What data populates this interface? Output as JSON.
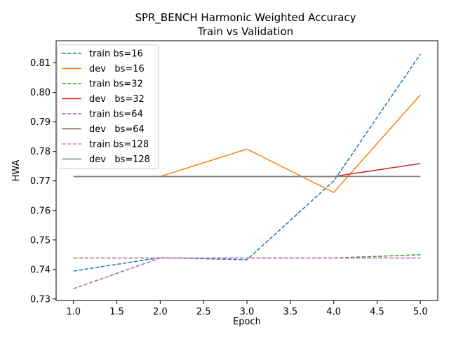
{
  "chart_data": {
    "type": "line",
    "title_lines": [
      "SPR_BENCH Harmonic Weighted Accuracy",
      "Train vs Validation"
    ],
    "xlabel": "Epoch",
    "ylabel": "HWA",
    "xlim": [
      0.8,
      5.2
    ],
    "ylim": [
      0.7295,
      0.8175
    ],
    "x_ticks": [
      1.0,
      1.5,
      2.0,
      2.5,
      3.0,
      3.5,
      4.0,
      4.5,
      5.0
    ],
    "x_tick_labels": [
      "1.0",
      "1.5",
      "2.0",
      "2.5",
      "3.0",
      "3.5",
      "4.0",
      "4.5",
      "5.0"
    ],
    "y_ticks": [
      0.73,
      0.74,
      0.75,
      0.76,
      0.77,
      0.78,
      0.79,
      0.8,
      0.81
    ],
    "y_tick_labels": [
      "0.73",
      "0.74",
      "0.75",
      "0.76",
      "0.77",
      "0.78",
      "0.79",
      "0.80",
      "0.81"
    ],
    "x": [
      1,
      2,
      3,
      4,
      5
    ],
    "legend_position": "upper-left",
    "series": [
      {
        "name": "train bs=16",
        "color": "#1f77b4",
        "dash": true,
        "values": [
          0.7395,
          0.744,
          0.7433,
          0.77,
          0.813
        ]
      },
      {
        "name": "dev   bs=16",
        "color": "#ff7f0e",
        "dash": false,
        "values": [
          0.7715,
          0.7715,
          0.7808,
          0.7661,
          0.7992
        ]
      },
      {
        "name": "train bs=32",
        "color": "#2ca02c",
        "dash": true,
        "values": [
          0.7439,
          0.7439,
          0.7439,
          0.7439,
          0.745
        ]
      },
      {
        "name": "dev   bs=32",
        "color": "#d62728",
        "dash": false,
        "values": [
          0.7715,
          0.7715,
          0.7715,
          0.7715,
          0.7759
        ]
      },
      {
        "name": "train bs=64",
        "color": "#9467bd",
        "dash": true,
        "values": [
          0.7335,
          0.7439,
          0.7439,
          0.7439,
          0.7439
        ]
      },
      {
        "name": "dev   bs=64",
        "color": "#8c564b",
        "dash": false,
        "values": [
          0.7715,
          0.7715,
          0.7715,
          0.7715,
          0.7715
        ]
      },
      {
        "name": "train bs=128",
        "color": "#e377c2",
        "dash": true,
        "values": [
          0.7439,
          0.7439,
          0.7439,
          0.7439,
          0.7439
        ]
      },
      {
        "name": "dev   bs=128",
        "color": "#7f7f7f",
        "dash": false,
        "values": [
          0.7715,
          0.7715,
          0.7715,
          0.7715,
          0.7715
        ]
      }
    ]
  }
}
